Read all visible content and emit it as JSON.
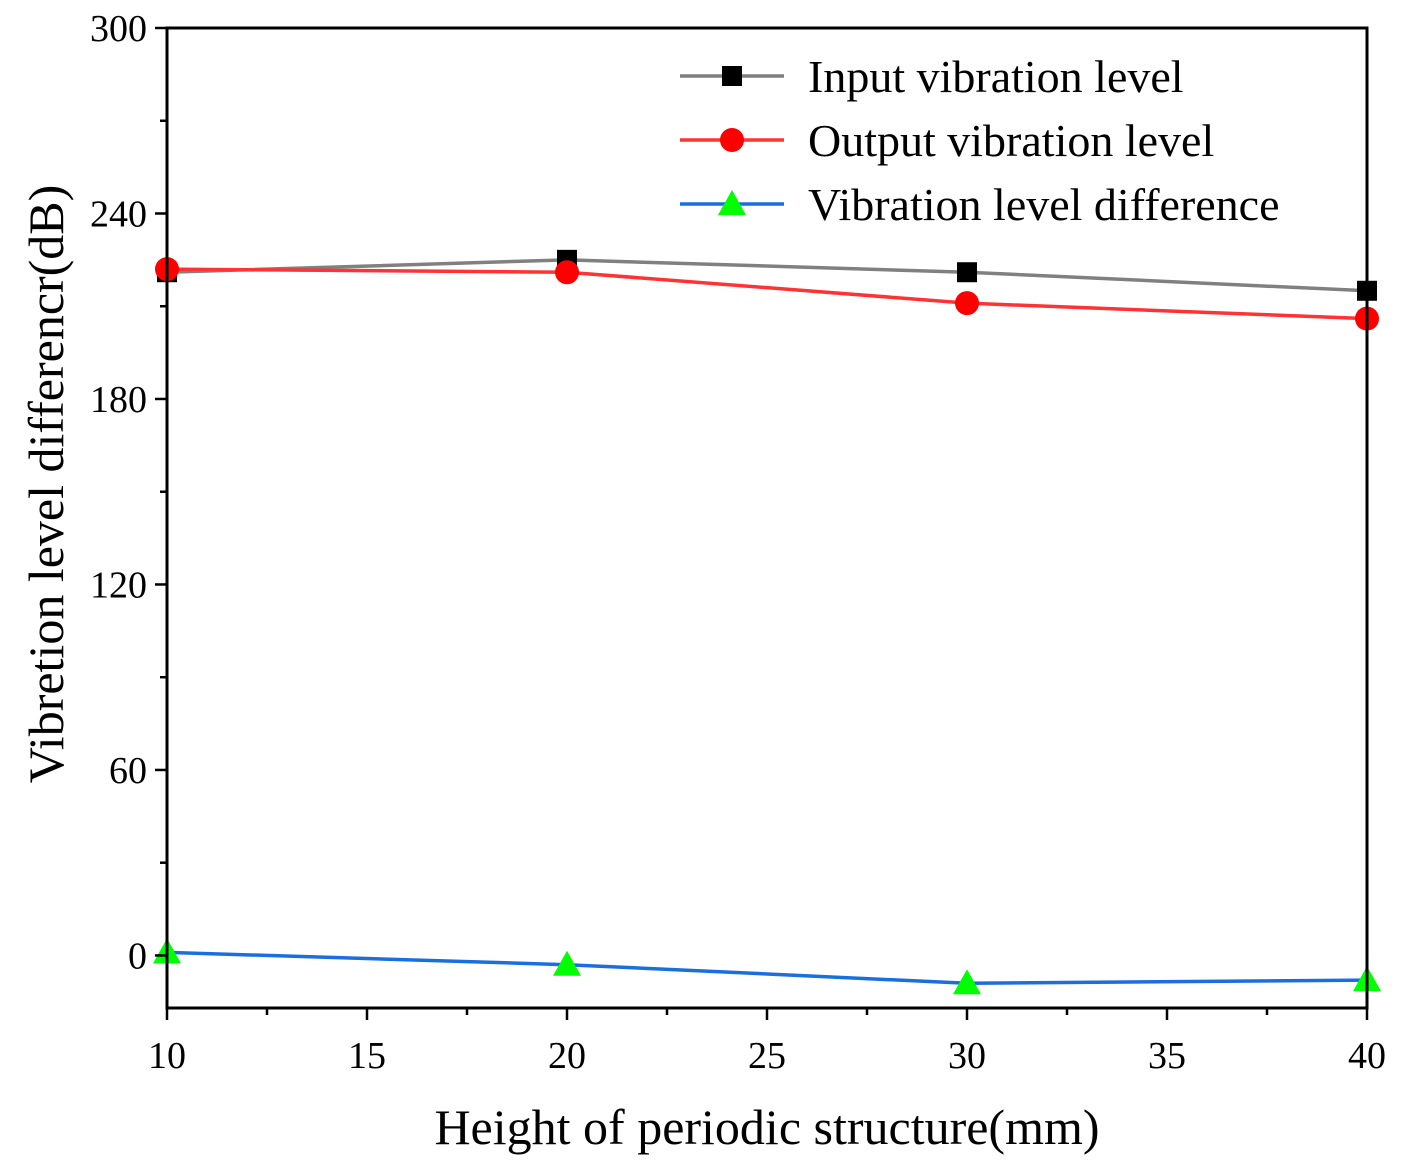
{
  "chart_data": {
    "type": "line",
    "title": "",
    "xlabel": "Height of periodic structure(mm)",
    "ylabel": "Vibretion level differencr(dB)",
    "x": [
      10,
      20,
      30,
      40
    ],
    "xlim": [
      10,
      40
    ],
    "ylim": [
      -17,
      300
    ],
    "x_ticks": [
      10,
      15,
      20,
      25,
      30,
      35,
      40
    ],
    "x_tick_labels": [
      "10",
      "15",
      "20",
      "25",
      "30",
      "35",
      "40"
    ],
    "y_ticks": [
      0,
      60,
      120,
      180,
      240,
      300
    ],
    "y_tick_labels": [
      "0",
      "60",
      "120",
      "180",
      "240",
      "300"
    ],
    "x_minor_step": 2.5,
    "y_minor_step": 30,
    "grid": false,
    "legend_position": "top-right",
    "series": [
      {
        "name": "Input vibration level",
        "values": [
          221,
          225,
          221,
          215
        ],
        "color": "#808080",
        "marker": "square",
        "marker_color": "#000000"
      },
      {
        "name": "Output vibration level",
        "values": [
          222,
          221,
          211,
          206
        ],
        "color": "#ff3333",
        "marker": "circle",
        "marker_color": "#ff0000"
      },
      {
        "name": "Vibration level difference",
        "values": [
          1,
          -3,
          -9,
          -8
        ],
        "color": "#1a6fdf",
        "marker": "triangle",
        "marker_color": "#00ff00"
      }
    ]
  }
}
